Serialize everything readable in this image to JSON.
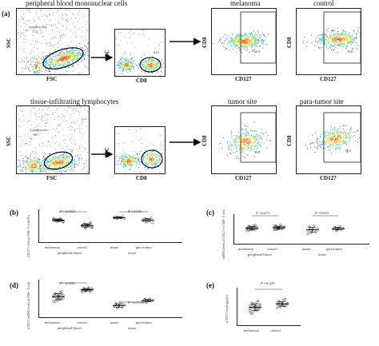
{
  "panel_a": {
    "tag": "(a)",
    "row1_title": "peripheral blood mononuclear cells",
    "row2_title": "tissue-infiltrating lymphocytes",
    "melanoma": "melanoma",
    "control": "control",
    "tumor_site": "tumor site",
    "para_tumor_site": "para-tumor site",
    "ssc": "SSC",
    "fsc": "FSC",
    "cd8": "CD8",
    "cd127": "CD127",
    "lymphocytes": "Lymphocytes",
    "r1_lymph_val": "71.5",
    "r1_cd8_val": "63.5",
    "r1_mel_val": "60.0",
    "r1_ctrl_val": "76.8",
    "r2_lymph_val": "60.1",
    "r2_cd8_val": "57.7",
    "r2_tumor_val": "30.8",
    "r2_para_val": "66.2"
  },
  "panel_b": {
    "tag": "(b)",
    "ylabel": "CD127+ cells in CD8+ T cells (%)",
    "p1": "P <0.0001",
    "p2": "P =0.036",
    "g1": "melanoma",
    "g2": "control",
    "g3": "tumor",
    "g4": "para-tumor",
    "group1": "peripheral blood",
    "group2": "tissue"
  },
  "panel_c": {
    "tag": "(c)",
    "ylabel": "mRNA levels of CD127 in CD8+ T cells",
    "p1": "P =0.673",
    "p2": "P =0.653",
    "g1": "melanoma",
    "g2": "control",
    "g3": "tumor",
    "g4": "para-tumor",
    "group1": "peripheral blood",
    "group2": "tissue"
  },
  "panel_d": {
    "tag": "(d)",
    "ylabel": "sCD127 mRNA levels in CD8+ T cells",
    "p1": "P <0.0001",
    "p2": "P =0.013",
    "g1": "melanoma",
    "g2": "control",
    "g3": "tumor",
    "g4": "para-tumor",
    "group1": "peripheral blood",
    "group2": "tissue"
  },
  "panel_e": {
    "tag": "(e)",
    "ylabel": "sCD127 levels (pg/ml)",
    "p1": "P =0.029",
    "g1": "melanoma",
    "g2": "control"
  },
  "chart_data": [
    {
      "type": "scatter",
      "panel": "b",
      "categories": [
        "melanoma",
        "control",
        "tumor",
        "para-tumor"
      ],
      "series": [
        {
          "values": [
            0.66,
            0.7,
            0.68,
            0.65,
            0.72,
            0.69,
            0.63,
            0.71,
            0.67,
            0.64,
            0.7,
            0.66,
            0.68,
            0.62,
            0.73,
            0.67,
            0.69,
            0.65,
            0.7,
            0.68
          ]
        },
        {
          "values": [
            0.5,
            0.56,
            0.47,
            0.55,
            0.52,
            0.58,
            0.45,
            0.53,
            0.49,
            0.57,
            0.51,
            0.54,
            0.6,
            0.48,
            0.52,
            0.55,
            0.43,
            0.5
          ]
        },
        {
          "values": [
            0.74,
            0.77,
            0.73,
            0.76,
            0.75,
            0.78,
            0.72,
            0.76,
            0.74,
            0.77
          ]
        },
        {
          "values": [
            0.66,
            0.72,
            0.62,
            0.7,
            0.68,
            0.74,
            0.6,
            0.69,
            0.67,
            0.71
          ]
        }
      ]
    },
    {
      "type": "scatter",
      "panel": "c",
      "categories": [
        "melanoma",
        "control",
        "tumor",
        "para-tumor"
      ],
      "series": [
        {
          "values": [
            0.52,
            0.58,
            0.48,
            0.55,
            0.62,
            0.5,
            0.57,
            0.45,
            0.6,
            0.53,
            0.49,
            0.56,
            0.64,
            0.51,
            0.54,
            0.47,
            0.59,
            0.55,
            0.5,
            0.57
          ]
        },
        {
          "values": [
            0.55,
            0.6,
            0.5,
            0.57,
            0.65,
            0.52,
            0.58,
            0.48,
            0.62,
            0.55,
            0.51,
            0.59,
            0.53,
            0.56,
            0.61,
            0.49,
            0.57,
            0.54
          ]
        },
        {
          "values": [
            0.45,
            0.55,
            0.38,
            0.5,
            0.62,
            0.42,
            0.52,
            0.35,
            0.58,
            0.47
          ]
        },
        {
          "values": [
            0.5,
            0.56,
            0.46,
            0.54,
            0.6,
            0.48,
            0.53,
            0.51,
            0.57,
            0.49
          ]
        }
      ]
    },
    {
      "type": "scatter",
      "panel": "d",
      "categories": [
        "melanoma",
        "control",
        "tumor",
        "para-tumor"
      ],
      "series": [
        {
          "values": [
            0.55,
            0.62,
            0.48,
            0.58,
            0.67,
            0.5,
            0.6,
            0.44,
            0.64,
            0.53,
            0.46,
            0.57,
            0.7,
            0.52,
            0.59,
            0.42,
            0.61,
            0.55,
            0.49,
            0.63
          ]
        },
        {
          "values": [
            0.72,
            0.76,
            0.7,
            0.74,
            0.78,
            0.69,
            0.75,
            0.73,
            0.77,
            0.71,
            0.74,
            0.79,
            0.72,
            0.76,
            0.68,
            0.74,
            0.75,
            0.73
          ]
        },
        {
          "values": [
            0.3,
            0.36,
            0.26,
            0.33,
            0.4,
            0.28,
            0.35,
            0.31,
            0.38,
            0.3
          ]
        },
        {
          "values": [
            0.42,
            0.48,
            0.4,
            0.46,
            0.5,
            0.44,
            0.47,
            0.43,
            0.49,
            0.45
          ]
        }
      ]
    },
    {
      "type": "scatter",
      "panel": "e",
      "categories": [
        "melanoma",
        "control"
      ],
      "series": [
        {
          "values": [
            0.45,
            0.55,
            0.38,
            0.5,
            0.62,
            0.42,
            0.57,
            0.35,
            0.6,
            0.48,
            0.52,
            0.4,
            0.66,
            0.46,
            0.54,
            0.32,
            0.58,
            0.44,
            0.5,
            0.47,
            0.53,
            0.41
          ]
        },
        {
          "values": [
            0.55,
            0.62,
            0.5,
            0.58,
            0.68,
            0.52,
            0.6,
            0.47,
            0.65,
            0.56,
            0.59,
            0.53,
            0.7,
            0.57,
            0.61,
            0.54
          ]
        }
      ]
    }
  ]
}
